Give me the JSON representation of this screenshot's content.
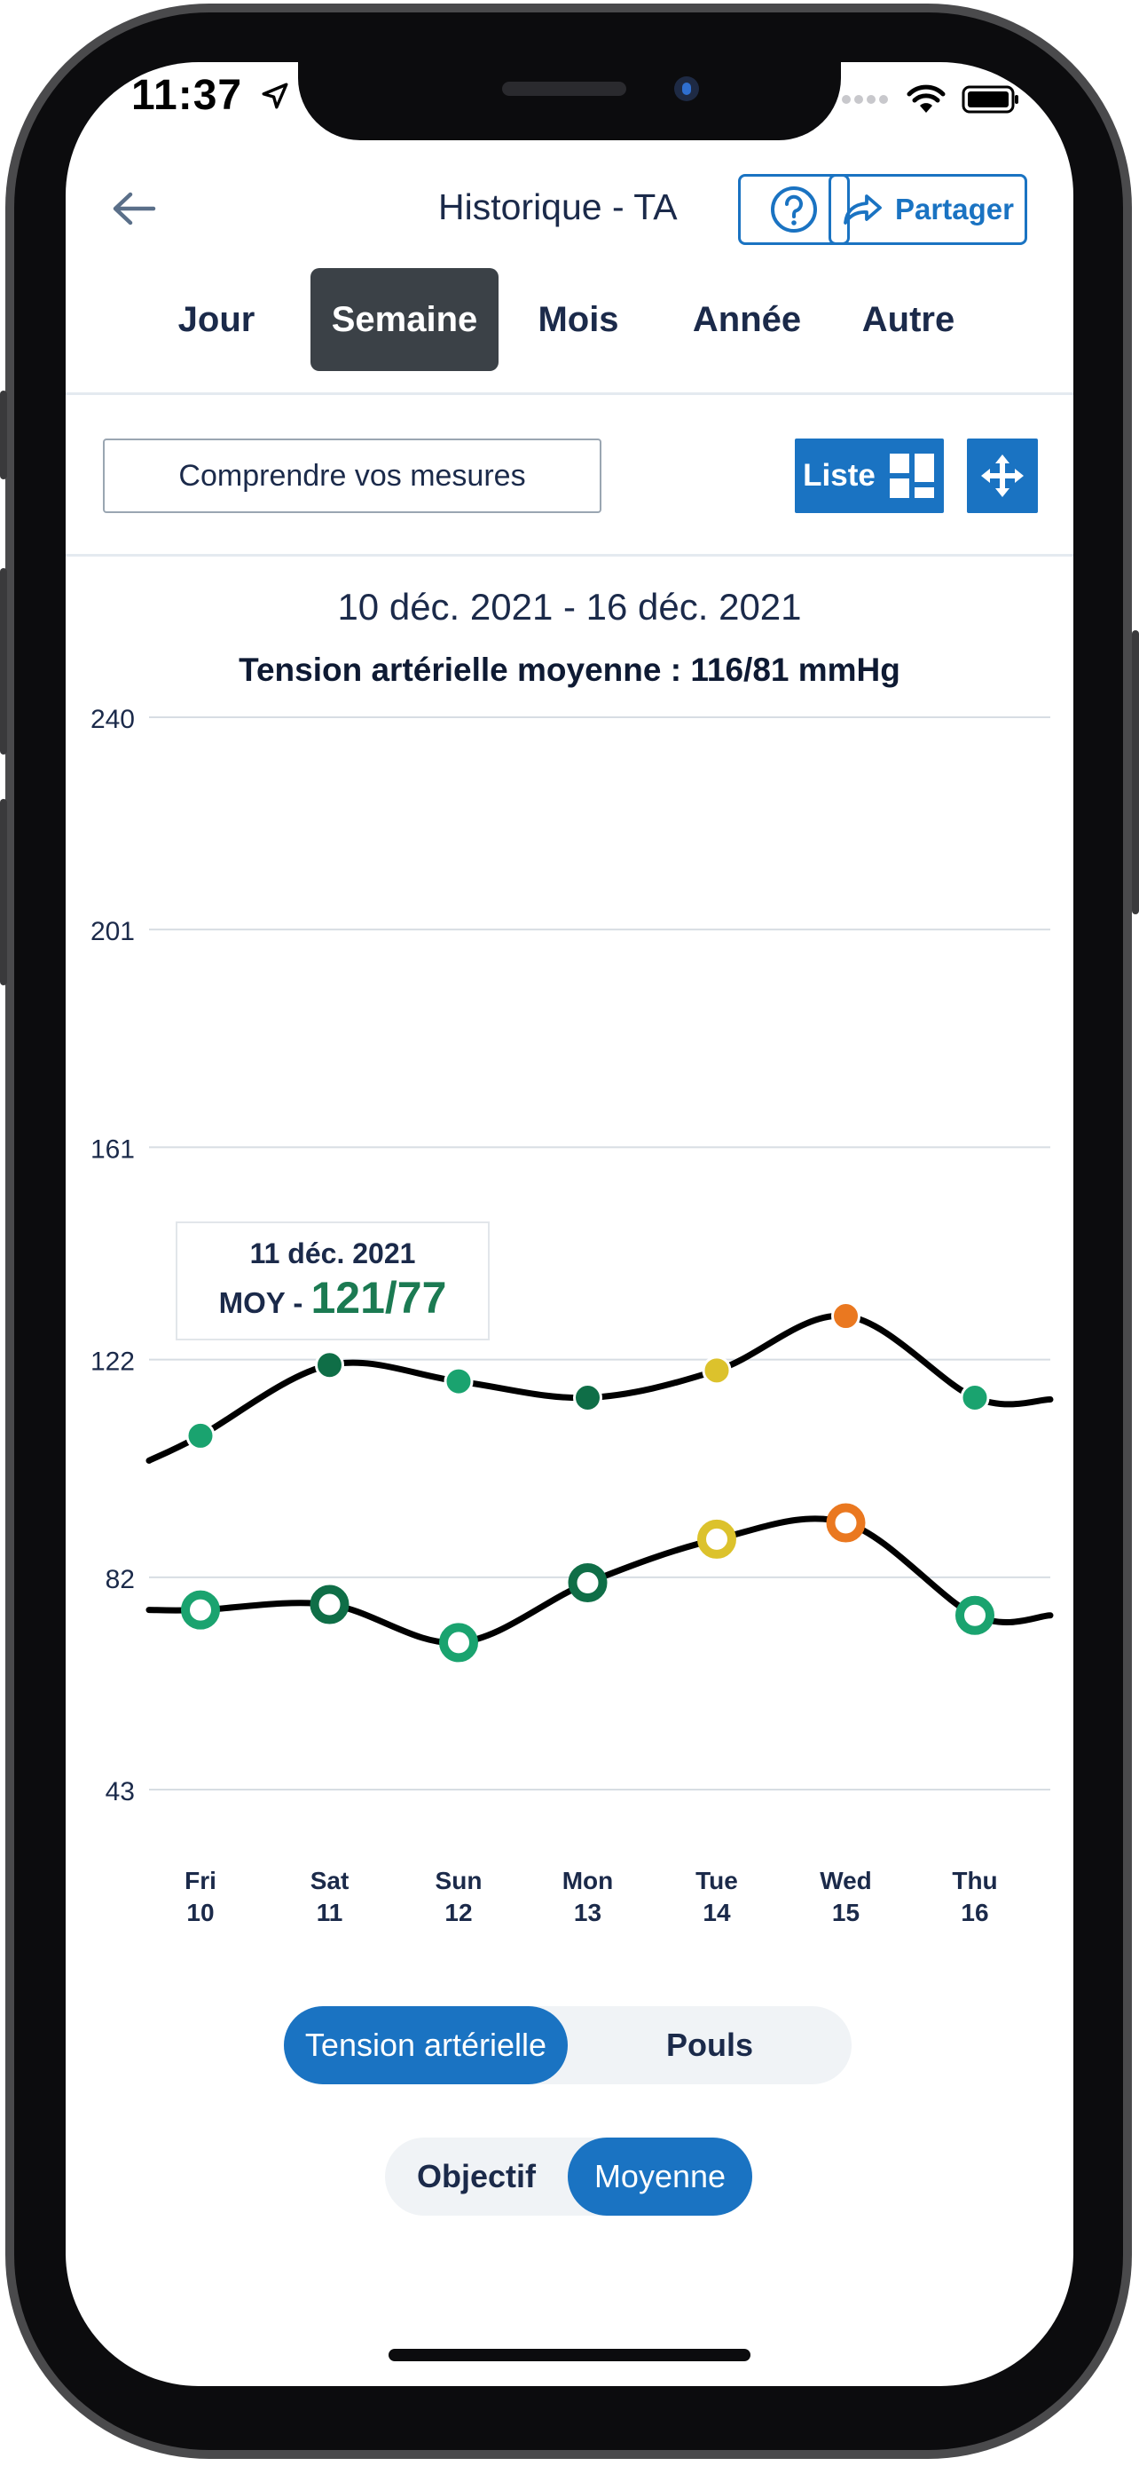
{
  "status": {
    "time": "11:37"
  },
  "header": {
    "title": "Historique - TA",
    "share_label": "Partager"
  },
  "tabs": [
    {
      "label": "Jour",
      "active": false
    },
    {
      "label": "Semaine",
      "active": true
    },
    {
      "label": "Mois",
      "active": false
    },
    {
      "label": "Année",
      "active": false
    },
    {
      "label": "Autre",
      "active": false
    }
  ],
  "toolbar": {
    "understand_label": "Comprendre vos mesures",
    "list_label": "Liste"
  },
  "summary": {
    "date_range": "10 déc. 2021 - 16 déc. 2021",
    "average_text": "Tension artérielle moyenne : 116/81 mmHg"
  },
  "tooltip": {
    "date": "11 déc. 2021",
    "prefix": "MOY - ",
    "value": "121/77"
  },
  "chart_data": {
    "type": "line",
    "y_ticks": [
      240,
      201,
      161,
      122,
      82,
      43
    ],
    "ylim": [
      43,
      240
    ],
    "categories": [
      {
        "day": "Fri",
        "num": "10"
      },
      {
        "day": "Sat",
        "num": "11"
      },
      {
        "day": "Sun",
        "num": "12"
      },
      {
        "day": "Mon",
        "num": "13"
      },
      {
        "day": "Tue",
        "num": "14"
      },
      {
        "day": "Wed",
        "num": "15"
      },
      {
        "day": "Thu",
        "num": "16"
      }
    ],
    "series": [
      {
        "values": [
          108,
          121,
          118,
          115,
          120,
          130,
          115
        ],
        "point_colors": [
          "#1aa36f",
          "#0f6e47",
          "#1aa36f",
          "#0f6e47",
          "#dcc22c",
          "#ea7820",
          "#1aa36f"
        ],
        "marker": "filled"
      },
      {
        "values": [
          76,
          77,
          70,
          81,
          89,
          92,
          75
        ],
        "point_colors": [
          "#1aa36f",
          "#0f6e47",
          "#1aa36f",
          "#0f6e47",
          "#dcc22c",
          "#ea7820",
          "#1aa36f"
        ],
        "marker": "ring"
      }
    ],
    "grid": true
  },
  "toggle_metric": {
    "options": [
      "Tension artérielle",
      "Pouls"
    ],
    "selected": 0
  },
  "toggle_mode": {
    "options": [
      "Objectif",
      "Moyenne"
    ],
    "selected": 1
  },
  "colors": {
    "accent": "#1a73c2",
    "tab_active": "#3b4147",
    "good": "#1aa36f",
    "good_dark": "#0f6e47",
    "warn": "#dcc22c",
    "alert": "#ea7820"
  }
}
